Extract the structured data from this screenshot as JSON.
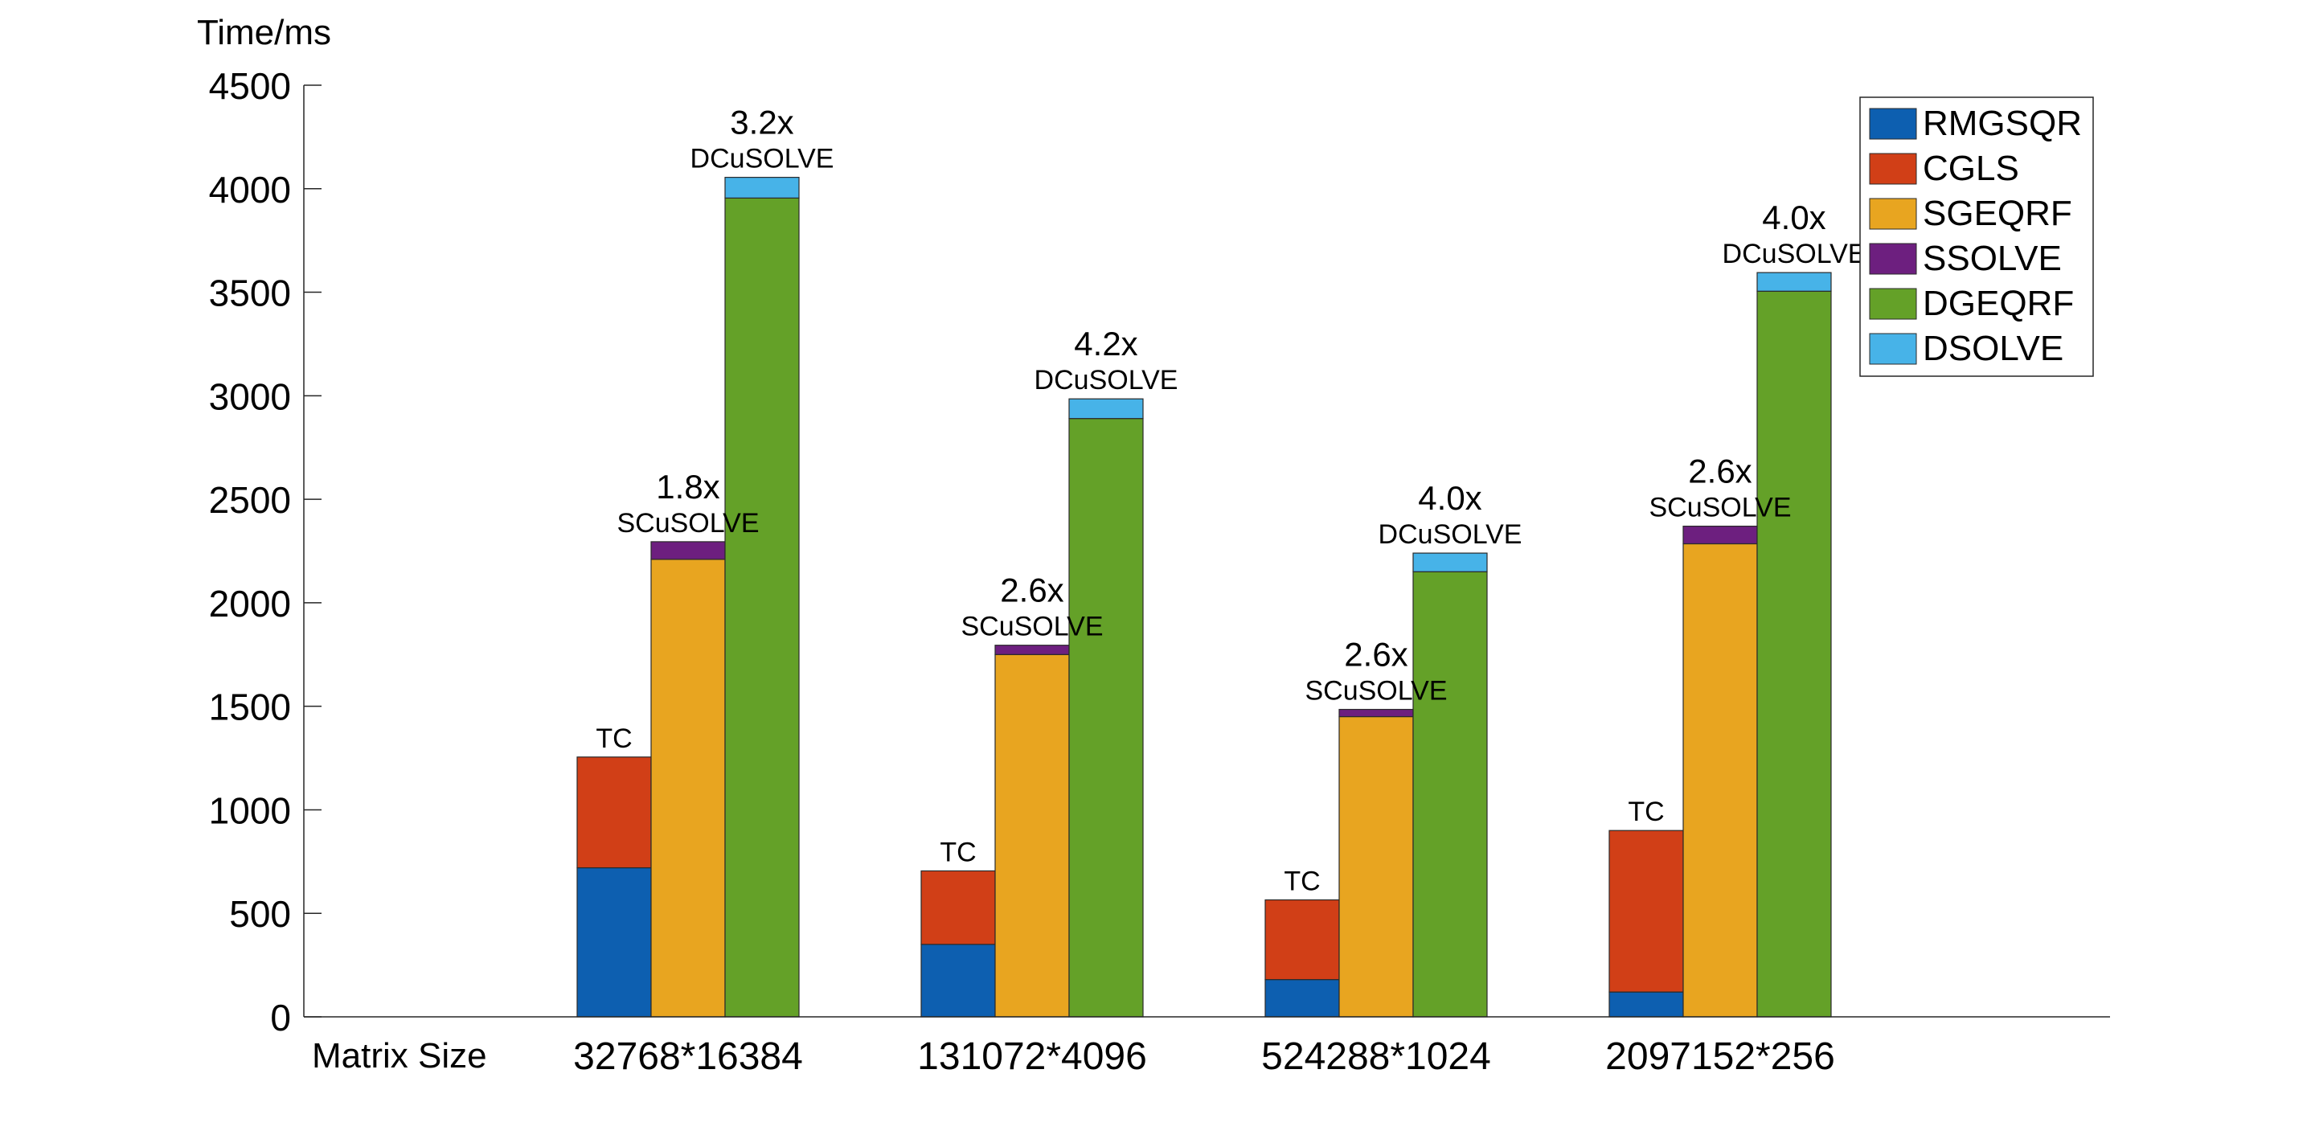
{
  "chart_data": {
    "type": "bar",
    "stacked_grouped": true,
    "y_unit_label": "Time/ms",
    "x_axis_label": "Matrix Size",
    "ylim": [
      0,
      4500
    ],
    "yticks": [
      0,
      500,
      1000,
      1500,
      2000,
      2500,
      3000,
      3500,
      4000,
      4500
    ],
    "grid": false,
    "legend_position": "top-right",
    "categories": [
      "32768*16384",
      "131072*4096",
      "524288*1024",
      "2097152*256"
    ],
    "series": [
      {
        "name": "RMGSQR",
        "color": "#0d5fb0"
      },
      {
        "name": "CGLS",
        "color": "#d13f17"
      },
      {
        "name": "SGEQRF",
        "color": "#e8a520"
      },
      {
        "name": "SSOLVE",
        "color": "#6d1f7f"
      },
      {
        "name": "DGEQRF",
        "color": "#64a128"
      },
      {
        "name": "DSOLVE",
        "color": "#47b3e8"
      }
    ],
    "groups": [
      {
        "category": "32768*16384",
        "bars": [
          {
            "label": "TC",
            "speedup": "",
            "segments": [
              {
                "series": "RMGSQR",
                "value": 720
              },
              {
                "series": "CGLS",
                "value": 535
              }
            ]
          },
          {
            "label": "SCuSOLVE",
            "speedup": "1.8x",
            "segments": [
              {
                "series": "SGEQRF",
                "value": 2210
              },
              {
                "series": "SSOLVE",
                "value": 85
              }
            ]
          },
          {
            "label": "DCuSOLVE",
            "speedup": "3.2x",
            "segments": [
              {
                "series": "DGEQRF",
                "value": 3955
              },
              {
                "series": "DSOLVE",
                "value": 100
              }
            ]
          }
        ]
      },
      {
        "category": "131072*4096",
        "bars": [
          {
            "label": "TC",
            "speedup": "",
            "segments": [
              {
                "series": "RMGSQR",
                "value": 350
              },
              {
                "series": "CGLS",
                "value": 355
              }
            ]
          },
          {
            "label": "SCuSOLVE",
            "speedup": "2.6x",
            "segments": [
              {
                "series": "SGEQRF",
                "value": 1750
              },
              {
                "series": "SSOLVE",
                "value": 45
              }
            ]
          },
          {
            "label": "DCuSOLVE",
            "speedup": "4.2x",
            "segments": [
              {
                "series": "DGEQRF",
                "value": 2890
              },
              {
                "series": "DSOLVE",
                "value": 95
              }
            ]
          }
        ]
      },
      {
        "category": "524288*1024",
        "bars": [
          {
            "label": "TC",
            "speedup": "",
            "segments": [
              {
                "series": "RMGSQR",
                "value": 180
              },
              {
                "series": "CGLS",
                "value": 385
              }
            ]
          },
          {
            "label": "SCuSOLVE",
            "speedup": "2.6x",
            "segments": [
              {
                "series": "SGEQRF",
                "value": 1450
              },
              {
                "series": "SSOLVE",
                "value": 35
              }
            ]
          },
          {
            "label": "DCuSOLVE",
            "speedup": "4.0x",
            "segments": [
              {
                "series": "DGEQRF",
                "value": 2150
              },
              {
                "series": "DSOLVE",
                "value": 90
              }
            ]
          }
        ]
      },
      {
        "category": "2097152*256",
        "bars": [
          {
            "label": "TC",
            "speedup": "",
            "segments": [
              {
                "series": "RMGSQR",
                "value": 120
              },
              {
                "series": "CGLS",
                "value": 780
              }
            ]
          },
          {
            "label": "SCuSOLVE",
            "speedup": "2.6x",
            "segments": [
              {
                "series": "SGEQRF",
                "value": 2285
              },
              {
                "series": "SSOLVE",
                "value": 85
              }
            ]
          },
          {
            "label": "DCuSOLVE",
            "speedup": "4.0x",
            "segments": [
              {
                "series": "DGEQRF",
                "value": 3505
              },
              {
                "series": "DSOLVE",
                "value": 90
              }
            ]
          }
        ]
      }
    ]
  }
}
